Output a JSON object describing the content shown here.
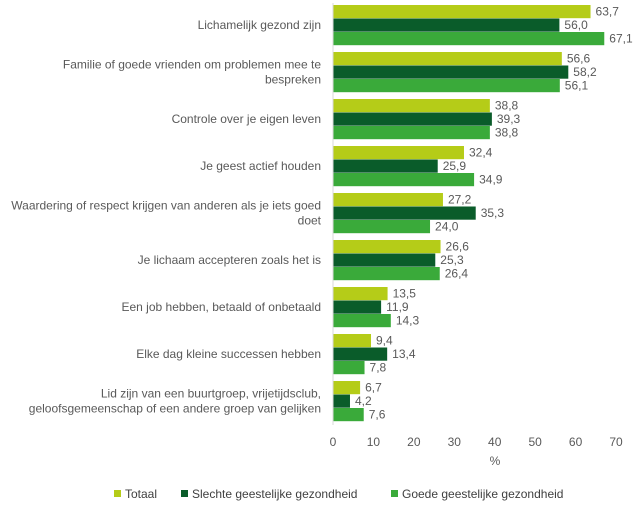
{
  "chart_data": {
    "type": "bar",
    "orientation": "horizontal",
    "categories": [
      [
        "Lichamelijk gezond zijn"
      ],
      [
        "Familie of goede vrienden om problemen mee te",
        "bespreken"
      ],
      [
        "Controle over je eigen leven"
      ],
      [
        "Je geest actief houden"
      ],
      [
        "Waardering of respect krijgen van anderen als je iets goed",
        "doet"
      ],
      [
        "Je lichaam accepteren zoals het is"
      ],
      [
        "Een job hebben, betaald of onbetaald"
      ],
      [
        "Elke dag kleine successen hebben"
      ],
      [
        "Lid zijn van een buurtgroep, vrijetijdsclub,",
        "geloofsgemeenschap of een andere groep van gelijken"
      ]
    ],
    "series": [
      {
        "name": "Totaal",
        "color": "#b5cc18",
        "values": [
          63.7,
          56.6,
          38.8,
          32.4,
          27.2,
          26.6,
          13.5,
          9.4,
          6.7
        ],
        "labels": [
          "63,7",
          "56,6",
          "38,8",
          "32,4",
          "27,2",
          "26,6",
          "13,5",
          "9,4",
          "6,7"
        ]
      },
      {
        "name": "Slechte geestelijke gezondheid",
        "color": "#0a5c2a",
        "values": [
          56.0,
          58.2,
          39.3,
          25.9,
          35.3,
          25.3,
          11.9,
          13.4,
          4.2
        ],
        "labels": [
          "56,0",
          "58,2",
          "39,3",
          "25,9",
          "35,3",
          "25,3",
          "11,9",
          "13,4",
          "4,2"
        ]
      },
      {
        "name": "Goede geestelijke gezondheid",
        "color": "#3aaa3a",
        "values": [
          67.1,
          56.1,
          38.8,
          34.9,
          24.0,
          26.4,
          14.3,
          7.8,
          7.6
        ],
        "labels": [
          "67,1",
          "56,1",
          "38,8",
          "34,9",
          "24,0",
          "26,4",
          "14,3",
          "7,8",
          "7,6"
        ]
      }
    ],
    "xlim": [
      0,
      70
    ],
    "xticks": [
      "0",
      "10",
      "20",
      "30",
      "40",
      "50",
      "60",
      "70"
    ],
    "xlabel": "%",
    "legend": "bottom"
  }
}
